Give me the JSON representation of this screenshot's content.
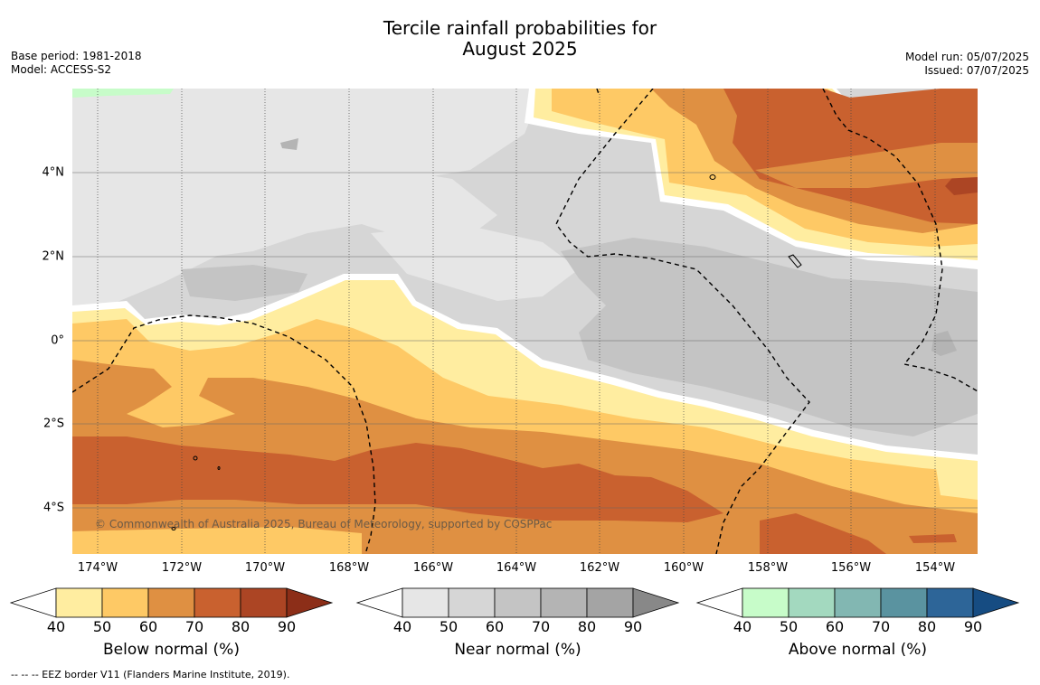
{
  "title": {
    "line1": "Tercile rainfall probabilities for",
    "line2": "August 2025"
  },
  "meta_left": {
    "base_period": "Base period: 1981-2018",
    "model": "Model: ACCESS-S2"
  },
  "meta_right": {
    "model_run": "Model run: 05/07/2025",
    "issued": "Issued: 07/07/2025"
  },
  "map": {
    "x_ticks": [
      "174°W",
      "172°W",
      "170°W",
      "168°W",
      "166°W",
      "164°W",
      "162°W",
      "160°W",
      "158°W",
      "156°W",
      "154°W"
    ],
    "y_ticks": [
      "4°N",
      "2°N",
      "0°",
      "2°S",
      "4°S"
    ],
    "copyright": "© Commonwealth of Australia 2025, Bureau of Meteorology, supported by COSPPac",
    "colors": {
      "near_base": "#d6d6d6"
    }
  },
  "colorbars": [
    {
      "label": "Below normal (%)",
      "ticks": [
        "40",
        "50",
        "60",
        "70",
        "80",
        "90"
      ],
      "colors": [
        "#ffeda0",
        "#fec965",
        "#df9042",
        "#c9612f",
        "#ac4524",
        "#8c2e18"
      ]
    },
    {
      "label": "Near normal (%)",
      "ticks": [
        "40",
        "50",
        "60",
        "70",
        "80",
        "90"
      ],
      "colors": [
        "#e6e6e6",
        "#d6d6d6",
        "#c4c4c4",
        "#b4b4b4",
        "#a4a4a4",
        "#888888"
      ]
    },
    {
      "label": "Above normal (%)",
      "ticks": [
        "40",
        "50",
        "60",
        "70",
        "80",
        "90"
      ],
      "colors": [
        "#c7fcc9",
        "#a3d9bf",
        "#82b7b2",
        "#5a93a0",
        "#2d6598",
        "#164c82"
      ]
    }
  ],
  "footnote": "--  --  -- EEZ border V11 (Flanders Marine Institute, 2019)."
}
